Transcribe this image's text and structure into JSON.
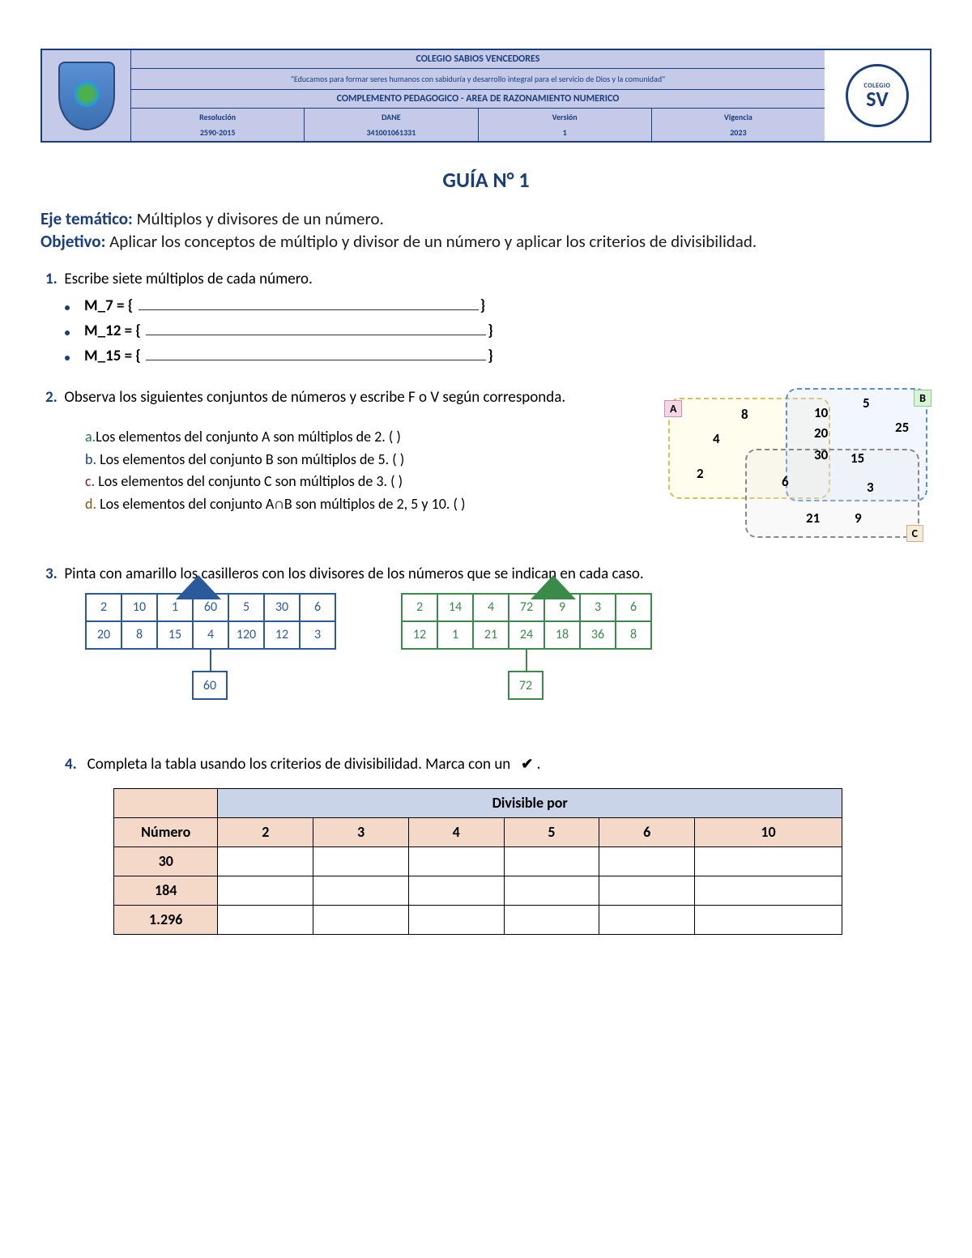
{
  "header": {
    "school": "COLEGIO SABIOS VENCEDORES",
    "motto": "\"Educamos para formar seres humanos con sabiduría y desarrollo integral para el servicio de Dios y la comunidad\"",
    "subtitle": "COMPLEMENTO PEDAGOGICO - AREA DE RAZONAMIENTO NUMERICO",
    "meta": {
      "resolucion_label": "Resolución",
      "resolucion": "2590-2015",
      "dane_label": "DANE",
      "dane": "341001061331",
      "version_label": "Versión",
      "version": "1",
      "vigencia_label": "Vigencia",
      "vigencia": "2023"
    },
    "sv": {
      "top": "COLEGIO",
      "big": "SV"
    }
  },
  "title": "GUÍA N° 1",
  "eje_label": "Eje temático:",
  "eje_text": " Múltiplos y divisores de un número.",
  "obj_label": "Objetivo:",
  "obj_text": " Aplicar los conceptos de múltiplo y divisor de un número y aplicar los criterios de divisibilidad.",
  "q1": {
    "num": "1.",
    "text": "Escribe siete múltiplos de cada número.",
    "items": [
      "M_7 = {",
      "M_12 = {",
      "M_15 = {"
    ],
    "close": "}"
  },
  "q2": {
    "num": "2.",
    "text": "Observa los siguientes conjuntos de números y escribe F o V según corresponda.",
    "subs": [
      {
        "l": "a.",
        "t": "Los elementos del conjunto A son múltiplos de 2. (     )"
      },
      {
        "l": "b.",
        "t": "   Los elementos del conjunto B son múltiplos de 5. (     )"
      },
      {
        "l": "c.",
        "t": "   Los elementos del conjunto C son múltiplos de 3. (     )"
      },
      {
        "l": "d.",
        "t": "  Los elementos del conjunto A∩B son múltiplos de 2, 5 y 10. (     )"
      }
    ],
    "venn": {
      "labels": {
        "A": "A",
        "B": "B",
        "C": "C"
      },
      "nums": [
        {
          "v": "8",
          "t": 22,
          "l": 95
        },
        {
          "v": "4",
          "t": 52,
          "l": 60
        },
        {
          "v": "2",
          "t": 95,
          "l": 40
        },
        {
          "v": "5",
          "t": 8,
          "l": 245
        },
        {
          "v": "10",
          "t": 20,
          "l": 185
        },
        {
          "v": "20",
          "t": 45,
          "l": 185
        },
        {
          "v": "25",
          "t": 38,
          "l": 285
        },
        {
          "v": "30",
          "t": 72,
          "l": 185
        },
        {
          "v": "15",
          "t": 76,
          "l": 230
        },
        {
          "v": "6",
          "t": 105,
          "l": 145
        },
        {
          "v": "3",
          "t": 112,
          "l": 250
        },
        {
          "v": "21",
          "t": 150,
          "l": 175
        },
        {
          "v": "9",
          "t": 150,
          "l": 235
        }
      ]
    }
  },
  "q3": {
    "num": "3.",
    "text": "Pinta con amarillo los casilleros con los divisores de los números que se indican en cada caso.",
    "grid1": {
      "rows": [
        [
          "2",
          "10",
          "1",
          "60",
          "5",
          "30",
          "6"
        ],
        [
          "20",
          "8",
          "15",
          "4",
          "120",
          "12",
          "3"
        ]
      ],
      "root": "60",
      "colors": {
        "border": "#2a5a9c"
      }
    },
    "grid2": {
      "rows": [
        [
          "2",
          "14",
          "4",
          "72",
          "9",
          "3",
          "6"
        ],
        [
          "12",
          "1",
          "21",
          "24",
          "18",
          "36",
          "8"
        ]
      ],
      "root": "72",
      "colors": {
        "border": "#3a8a4a"
      }
    }
  },
  "q4": {
    "num": "4.",
    "text": "Completa la tabla usando los criterios de divisibilidad. Marca con un",
    "check": "✔",
    "dot": ".",
    "table": {
      "header_span": "Divisible por",
      "col_num": "Número",
      "cols": [
        "2",
        "3",
        "4",
        "5",
        "6",
        "10"
      ],
      "rows": [
        "30",
        "184",
        "1.296"
      ]
    }
  }
}
